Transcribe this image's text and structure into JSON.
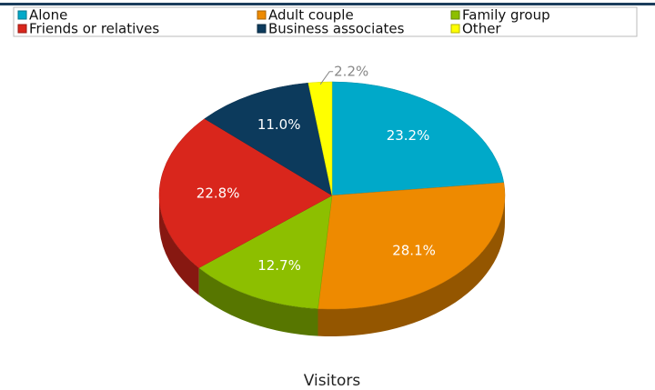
{
  "chart_data": {
    "type": "pie",
    "title": "Visitors",
    "categories": [
      "Alone",
      "Adult couple",
      "Family group",
      "Friends or relatives",
      "Business associates",
      "Other"
    ],
    "values": [
      23.2,
      28.1,
      12.7,
      22.8,
      11,
      2.2
    ],
    "value_labels": [
      "23.2%",
      "28.1%",
      "12.7%",
      "22.8%",
      "11.0%",
      "2.2%"
    ],
    "colors": [
      "#00a9c9",
      "#ee8a00",
      "#8dbf00",
      "#d9261c",
      "#0c3a5c",
      "#ffff00"
    ],
    "legend": "top"
  }
}
